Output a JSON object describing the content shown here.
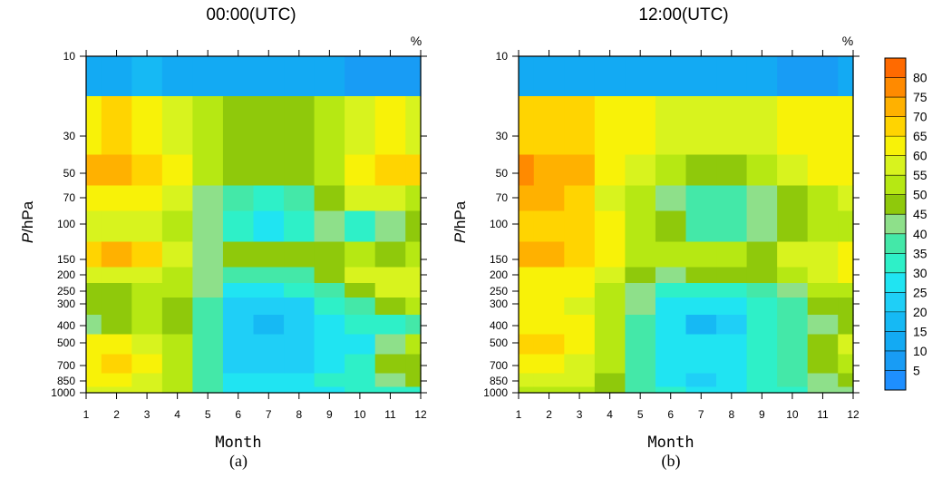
{
  "chart_data": [
    {
      "type": "heatmap",
      "title": "00:00(UTC)",
      "unit_label": "%",
      "xlabel": "Month",
      "ylabel_italic": "P",
      "ylabel_rest": "/hPa",
      "panel_label": "(a)",
      "x": [
        1,
        2,
        3,
        4,
        5,
        6,
        7,
        8,
        9,
        10,
        11,
        12
      ],
      "y": [
        10,
        30,
        50,
        70,
        100,
        150,
        200,
        250,
        300,
        400,
        500,
        700,
        850,
        1000
      ],
      "values": [
        [
          10,
          12,
          15,
          13,
          12,
          11,
          10,
          10,
          10,
          9,
          6,
          8
        ],
        [
          63,
          65,
          62,
          58,
          52,
          48,
          46,
          47,
          50,
          58,
          60,
          58
        ],
        [
          70,
          71,
          68,
          62,
          50,
          46,
          45,
          45,
          52,
          63,
          66,
          65
        ],
        [
          62,
          63,
          60,
          56,
          44,
          35,
          34,
          36,
          48,
          55,
          55,
          50
        ],
        [
          58,
          59,
          58,
          52,
          40,
          30,
          28,
          32,
          40,
          33,
          40,
          45
        ],
        [
          68,
          70,
          68,
          56,
          44,
          45,
          47,
          46,
          46,
          50,
          48,
          50
        ],
        [
          58,
          58,
          57,
          52,
          44,
          36,
          36,
          38,
          45,
          55,
          58,
          58
        ],
        [
          48,
          48,
          52,
          50,
          40,
          28,
          28,
          30,
          36,
          48,
          55,
          58
        ],
        [
          48,
          48,
          50,
          48,
          38,
          24,
          22,
          24,
          30,
          38,
          45,
          50
        ],
        [
          40,
          48,
          50,
          48,
          35,
          22,
          18,
          20,
          28,
          30,
          32,
          36
        ],
        [
          62,
          60,
          58,
          52,
          38,
          22,
          20,
          22,
          25,
          28,
          40,
          50
        ],
        [
          64,
          66,
          62,
          52,
          36,
          24,
          22,
          24,
          28,
          30,
          48,
          49
        ],
        [
          60,
          60,
          58,
          50,
          35,
          26,
          25,
          26,
          30,
          32,
          42,
          45
        ],
        [
          55,
          55,
          55,
          50,
          38,
          28,
          25,
          26,
          28,
          30,
          32,
          34
        ]
      ]
    },
    {
      "type": "heatmap",
      "title": "12:00(UTC)",
      "unit_label": "%",
      "xlabel": "Month",
      "ylabel_italic": "P",
      "ylabel_rest": "/hPa",
      "panel_label": "(b)",
      "x": [
        1,
        2,
        3,
        4,
        5,
        6,
        7,
        8,
        9,
        10,
        11,
        12
      ],
      "y": [
        10,
        30,
        50,
        70,
        100,
        150,
        200,
        250,
        300,
        400,
        500,
        700,
        850,
        1000
      ],
      "values": [
        [
          10,
          12,
          13,
          13,
          12,
          11,
          10,
          10,
          10,
          9,
          8,
          10
        ],
        [
          68,
          68,
          66,
          62,
          60,
          58,
          56,
          56,
          57,
          60,
          62,
          62
        ],
        [
          76,
          74,
          70,
          64,
          56,
          50,
          48,
          48,
          50,
          56,
          62,
          64
        ],
        [
          70,
          70,
          66,
          58,
          50,
          44,
          36,
          36,
          42,
          46,
          50,
          56
        ],
        [
          68,
          68,
          66,
          60,
          52,
          45,
          36,
          38,
          42,
          48,
          50,
          54
        ],
        [
          70,
          72,
          68,
          60,
          52,
          50,
          50,
          50,
          48,
          56,
          58,
          60
        ],
        [
          62,
          62,
          62,
          56,
          48,
          44,
          45,
          46,
          48,
          52,
          56,
          60
        ],
        [
          60,
          60,
          60,
          52,
          44,
          34,
          32,
          34,
          38,
          44,
          50,
          52
        ],
        [
          60,
          60,
          58,
          50,
          40,
          28,
          26,
          28,
          32,
          38,
          46,
          48
        ],
        [
          62,
          62,
          60,
          50,
          38,
          26,
          18,
          24,
          30,
          36,
          44,
          48
        ],
        [
          66,
          66,
          64,
          52,
          38,
          26,
          26,
          26,
          30,
          36,
          48,
          55
        ],
        [
          60,
          60,
          58,
          50,
          36,
          26,
          25,
          26,
          30,
          36,
          48,
          52
        ],
        [
          56,
          56,
          56,
          48,
          36,
          28,
          24,
          26,
          30,
          36,
          44,
          46
        ],
        [
          52,
          52,
          52,
          46,
          38,
          30,
          25,
          28,
          30,
          34,
          40,
          42
        ]
      ]
    }
  ],
  "colorbar": {
    "levels": [
      "5",
      "10",
      "15",
      "20",
      "25",
      "30",
      "35",
      "40",
      "45",
      "50",
      "55",
      "60",
      "65",
      "70",
      "75",
      "80"
    ],
    "colors": [
      "#1e8fff",
      "#189cf5",
      "#13aaf3",
      "#16b9f4",
      "#1fcff7",
      "#20e4f2",
      "#2ef0c8",
      "#44e8a8",
      "#8ee08a",
      "#8fc90b",
      "#b6e813",
      "#d8f31e",
      "#f8f208",
      "#ffd401",
      "#ffb100",
      "#ff8a00",
      "#ff6a00"
    ]
  },
  "ytick_labels": [
    "10",
    "30",
    "50",
    "70",
    "100",
    "150",
    "200",
    "250",
    "300",
    "400",
    "500",
    "700",
    "850",
    "1000"
  ],
  "xtick_labels": [
    "1",
    "2",
    "3",
    "4",
    "5",
    "6",
    "7",
    "8",
    "9",
    "10",
    "11",
    "12"
  ]
}
